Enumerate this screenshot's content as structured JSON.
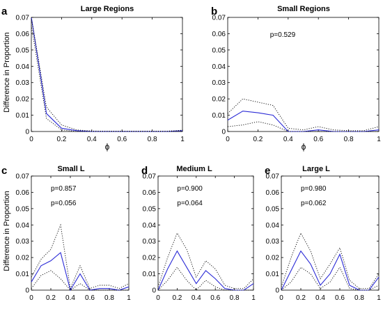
{
  "figure": {
    "ylabel": "Difference in Proportion",
    "xlabel": "ϕ",
    "colors": {
      "mean": "#2a2ad6",
      "band": "#000000",
      "axes": "#000000"
    }
  },
  "chart_data": [
    {
      "type": "line",
      "letter": "a",
      "title": "Large Regions",
      "xlim": [
        0,
        1
      ],
      "ylim": [
        0,
        0.07
      ],
      "xticks": [
        "0",
        "0.2",
        "0.4",
        "0.6",
        "0.8",
        "1"
      ],
      "yticks": [
        "0",
        "0.01",
        "0.02",
        "0.03",
        "0.04",
        "0.05",
        "0.06",
        "0.07"
      ],
      "annotations": [],
      "x": [
        0,
        0.1,
        0.2,
        0.3,
        0.4,
        0.5,
        0.6,
        0.7,
        0.8,
        0.9,
        1
      ],
      "series": [
        {
          "role": "mean",
          "values": [
            0.07,
            0.011,
            0.002,
            0.0005,
            0,
            0,
            0,
            0,
            0,
            0,
            0.0005
          ]
        },
        {
          "role": "upper",
          "values": [
            0.07,
            0.015,
            0.004,
            0.001,
            0.0003,
            0.0002,
            0.0002,
            0.0002,
            0.0002,
            0.0002,
            0.0008
          ]
        },
        {
          "role": "lower",
          "values": [
            0.065,
            0.008,
            0.001,
            0,
            0,
            0,
            0,
            0,
            0,
            0,
            0
          ]
        }
      ]
    },
    {
      "type": "line",
      "letter": "b",
      "title": "Small Regions",
      "xlim": [
        0,
        1
      ],
      "ylim": [
        0,
        0.07
      ],
      "xticks": [
        "0",
        "0.2",
        "0.4",
        "0.6",
        "0.8",
        "1"
      ],
      "yticks": [
        "0",
        "0.01",
        "0.02",
        "0.03",
        "0.04",
        "0.05",
        "0.06",
        "0.07"
      ],
      "annotations": [
        {
          "text": "p=0.529",
          "x": 0.28,
          "y": 0.058
        }
      ],
      "x": [
        0,
        0.1,
        0.2,
        0.3,
        0.4,
        0.5,
        0.6,
        0.7,
        0.8,
        0.9,
        1
      ],
      "series": [
        {
          "role": "mean",
          "values": [
            0.007,
            0.0125,
            0.0115,
            0.01,
            0,
            0,
            0.001,
            0,
            0,
            0,
            0.001
          ]
        },
        {
          "role": "upper",
          "values": [
            0.011,
            0.02,
            0.018,
            0.016,
            0.002,
            0.001,
            0.003,
            0.001,
            0.0005,
            0.0005,
            0.003
          ]
        },
        {
          "role": "lower",
          "values": [
            0.003,
            0.004,
            0.006,
            0.004,
            0,
            0,
            0,
            0,
            0,
            0,
            0
          ]
        }
      ]
    },
    {
      "type": "line",
      "letter": "c",
      "title": "Small L",
      "xlim": [
        0,
        1
      ],
      "ylim": [
        0,
        0.07
      ],
      "xticks": [
        "0",
        "0.2",
        "0.4",
        "0.6",
        "0.8",
        "1"
      ],
      "yticks": [
        "0",
        "0.01",
        "0.02",
        "0.03",
        "0.04",
        "0.05",
        "0.06",
        "0.07"
      ],
      "annotations": [
        {
          "text": "p=0.857",
          "x": 0.2,
          "y": 0.061
        },
        {
          "text": "p=0.056",
          "x": 0.2,
          "y": 0.052
        }
      ],
      "x": [
        0,
        0.1,
        0.2,
        0.3,
        0.4,
        0.5,
        0.6,
        0.7,
        0.8,
        0.9,
        1
      ],
      "series": [
        {
          "role": "mean",
          "values": [
            0.005,
            0.015,
            0.018,
            0.023,
            0,
            0.01,
            0,
            0.001,
            0.001,
            0,
            0.002
          ]
        },
        {
          "role": "upper",
          "values": [
            0.008,
            0.019,
            0.025,
            0.04,
            0.001,
            0.015,
            0.001,
            0.003,
            0.003,
            0.001,
            0.004
          ]
        },
        {
          "role": "lower",
          "values": [
            0.001,
            0.009,
            0.012,
            0.007,
            0,
            0.004,
            0,
            0,
            0,
            0,
            0
          ]
        }
      ]
    },
    {
      "type": "line",
      "letter": "d",
      "title": "Medium L",
      "xlim": [
        0,
        1
      ],
      "ylim": [
        0,
        0.07
      ],
      "xticks": [
        "0",
        "0.2",
        "0.4",
        "0.6",
        "0.8",
        "1"
      ],
      "yticks": [
        "0",
        "0.01",
        "0.02",
        "0.03",
        "0.04",
        "0.05",
        "0.06",
        "0.07"
      ],
      "annotations": [
        {
          "text": "p=0.900",
          "x": 0.2,
          "y": 0.061
        },
        {
          "text": "p=0.064",
          "x": 0.2,
          "y": 0.052
        }
      ],
      "x": [
        0,
        0.1,
        0.2,
        0.3,
        0.4,
        0.5,
        0.6,
        0.7,
        0.8,
        0.9,
        1
      ],
      "series": [
        {
          "role": "mean",
          "values": [
            0,
            0.013,
            0.024,
            0.014,
            0.004,
            0.012,
            0.007,
            0.001,
            0,
            0,
            0.004
          ]
        },
        {
          "role": "upper",
          "values": [
            0.002,
            0.02,
            0.035,
            0.025,
            0.008,
            0.018,
            0.013,
            0.003,
            0.001,
            0.001,
            0.007
          ]
        },
        {
          "role": "lower",
          "values": [
            0,
            0.006,
            0.014,
            0.006,
            0,
            0.006,
            0.002,
            0,
            0,
            0,
            0
          ]
        }
      ]
    },
    {
      "type": "line",
      "letter": "e",
      "title": "Large L",
      "xlim": [
        0,
        1
      ],
      "ylim": [
        0,
        0.07
      ],
      "xticks": [
        "0",
        "0.2",
        "0.4",
        "0.6",
        "0.8",
        "1"
      ],
      "yticks": [
        "0",
        "0.01",
        "0.02",
        "0.03",
        "0.04",
        "0.05",
        "0.06",
        "0.07"
      ],
      "annotations": [
        {
          "text": "p=0.980",
          "x": 0.2,
          "y": 0.061
        },
        {
          "text": "p=0.062",
          "x": 0.2,
          "y": 0.052
        }
      ],
      "x": [
        0,
        0.1,
        0.2,
        0.3,
        0.4,
        0.5,
        0.6,
        0.7,
        0.8,
        0.9,
        1
      ],
      "series": [
        {
          "role": "mean",
          "values": [
            0,
            0.012,
            0.024,
            0.016,
            0.003,
            0.01,
            0.022,
            0.003,
            0,
            0,
            0.008
          ]
        },
        {
          "role": "upper",
          "values": [
            0.002,
            0.02,
            0.035,
            0.024,
            0.007,
            0.016,
            0.026,
            0.006,
            0.001,
            0.001,
            0.01
          ]
        },
        {
          "role": "lower",
          "values": [
            0,
            0.005,
            0.014,
            0.01,
            0.001,
            0.005,
            0.014,
            0.001,
            0,
            0,
            0.003
          ]
        }
      ]
    }
  ]
}
